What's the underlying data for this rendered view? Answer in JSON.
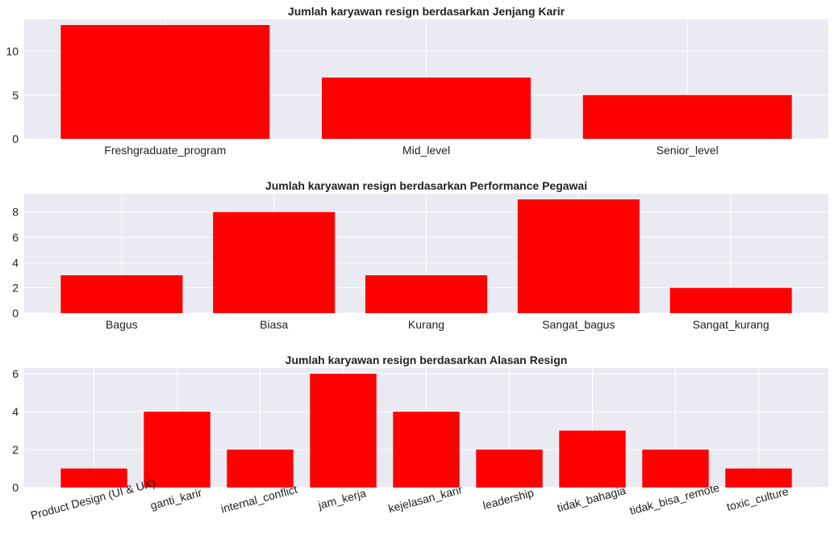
{
  "colors": {
    "bar": "#ff0000",
    "plot_bg": "#eaeaf2",
    "grid": "#ffffff",
    "text": "#222222"
  },
  "chart_data": [
    {
      "type": "bar",
      "title": "Jumlah karyawan resign berdasarkan Jenjang Karir",
      "categories": [
        "Freshgraduate_program",
        "Mid_level",
        "Senior_level"
      ],
      "values": [
        13,
        7,
        5
      ],
      "ylim": [
        0,
        13.65
      ],
      "yticks": [
        0,
        5,
        10
      ],
      "xlabel": "",
      "ylabel": "",
      "grid": true
    },
    {
      "type": "bar",
      "title": "Jumlah karyawan resign berdasarkan Performance Pegawai",
      "categories": [
        "Bagus",
        "Biasa",
        "Kurang",
        "Sangat_bagus",
        "Sangat_kurang"
      ],
      "values": [
        3,
        8,
        3,
        9,
        2
      ],
      "ylim": [
        0,
        9.45
      ],
      "yticks": [
        0,
        2,
        4,
        6,
        8
      ],
      "xlabel": "",
      "ylabel": "",
      "grid": true
    },
    {
      "type": "bar",
      "title": "Jumlah karyawan resign berdasarkan Alasan Resign",
      "categories": [
        "Product Design (UI & UX)",
        "ganti_karir",
        "internal_conflict",
        "jam_kerja",
        "kejelasan_karir",
        "leadership",
        "tidak_bahagia",
        "tidak_bisa_remote",
        "toxic_culture"
      ],
      "values": [
        1,
        4,
        2,
        6,
        4,
        2,
        3,
        2,
        1
      ],
      "ylim": [
        0,
        6.3
      ],
      "yticks": [
        0,
        2,
        4,
        6
      ],
      "xlabel": "",
      "ylabel": "",
      "x_tick_rotation": 15,
      "grid": true
    }
  ]
}
